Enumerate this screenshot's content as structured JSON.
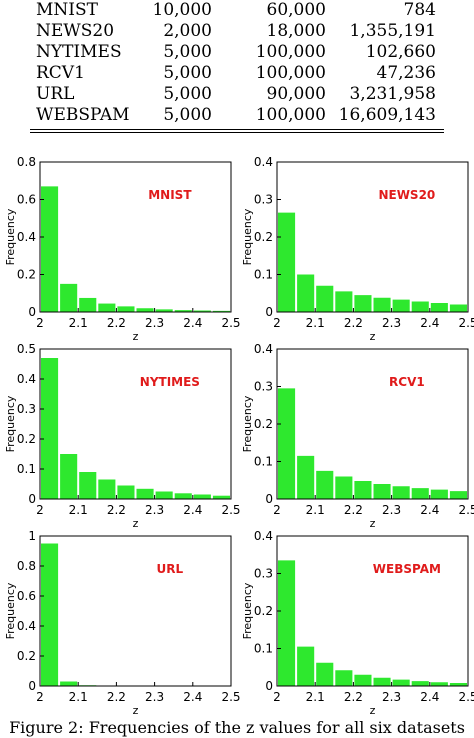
{
  "table": {
    "rows": [
      [
        "MNIST",
        "10,000",
        "60,000",
        "784"
      ],
      [
        "NEWS20",
        "2,000",
        "18,000",
        "1,355,191"
      ],
      [
        "NYTIMES",
        "5,000",
        "100,000",
        "102,660"
      ],
      [
        "RCV1",
        "5,000",
        "100,000",
        "47,236"
      ],
      [
        "URL",
        "5,000",
        "90,000",
        "3,231,958"
      ],
      [
        "WEBSPAM",
        "5,000",
        "100,000",
        "16,609,143"
      ]
    ]
  },
  "chart_data": [
    {
      "type": "bar",
      "title": "MNIST",
      "xlabel": "z",
      "ylabel": "Frequency",
      "x": [
        2.025,
        2.075,
        2.125,
        2.175,
        2.225,
        2.275,
        2.325,
        2.375,
        2.425,
        2.475
      ],
      "values": [
        0.67,
        0.15,
        0.075,
        0.045,
        0.03,
        0.02,
        0.014,
        0.01,
        0.008,
        0.006
      ],
      "xlim": [
        2,
        2.5
      ],
      "ylim": [
        0,
        0.8
      ],
      "xticks": [
        "2",
        "2.1",
        "2.2",
        "2.3",
        "2.4",
        "2.5"
      ],
      "yticks": [
        "0",
        "0.2",
        "0.4",
        "0.6",
        "0.8"
      ]
    },
    {
      "type": "bar",
      "title": "NEWS20",
      "xlabel": "z",
      "ylabel": "Frequency",
      "x": [
        2.025,
        2.075,
        2.125,
        2.175,
        2.225,
        2.275,
        2.325,
        2.375,
        2.425,
        2.475
      ],
      "values": [
        0.265,
        0.1,
        0.07,
        0.055,
        0.045,
        0.038,
        0.033,
        0.028,
        0.024,
        0.02
      ],
      "xlim": [
        2,
        2.5
      ],
      "ylim": [
        0,
        0.4
      ],
      "xticks": [
        "2",
        "2.1",
        "2.2",
        "2.3",
        "2.4",
        "2.5"
      ],
      "yticks": [
        "0",
        "0.1",
        "0.2",
        "0.3",
        "0.4"
      ]
    },
    {
      "type": "bar",
      "title": "NYTIMES",
      "xlabel": "z",
      "ylabel": "Frequency",
      "x": [
        2.025,
        2.075,
        2.125,
        2.175,
        2.225,
        2.275,
        2.325,
        2.375,
        2.425,
        2.475
      ],
      "values": [
        0.47,
        0.15,
        0.09,
        0.065,
        0.045,
        0.034,
        0.025,
        0.019,
        0.015,
        0.011
      ],
      "xlim": [
        2,
        2.5
      ],
      "ylim": [
        0,
        0.5
      ],
      "xticks": [
        "2",
        "2.1",
        "2.2",
        "2.3",
        "2.4",
        "2.5"
      ],
      "yticks": [
        "0",
        "0.1",
        "0.2",
        "0.3",
        "0.4",
        "0.5"
      ]
    },
    {
      "type": "bar",
      "title": "RCV1",
      "xlabel": "z",
      "ylabel": "Frequency",
      "x": [
        2.025,
        2.075,
        2.125,
        2.175,
        2.225,
        2.275,
        2.325,
        2.375,
        2.425,
        2.475
      ],
      "values": [
        0.295,
        0.115,
        0.075,
        0.06,
        0.048,
        0.04,
        0.034,
        0.029,
        0.025,
        0.021
      ],
      "xlim": [
        2,
        2.5
      ],
      "ylim": [
        0,
        0.4
      ],
      "xticks": [
        "2",
        "2.1",
        "2.2",
        "2.3",
        "2.4",
        "2.5"
      ],
      "yticks": [
        "0",
        "0.1",
        "0.2",
        "0.3",
        "0.4"
      ]
    },
    {
      "type": "bar",
      "title": "URL",
      "xlabel": "z",
      "ylabel": "Frequency",
      "x": [
        2.025,
        2.075,
        2.125,
        2.175,
        2.225,
        2.275,
        2.325,
        2.375,
        2.425,
        2.475
      ],
      "values": [
        0.95,
        0.03,
        0.005,
        0.003,
        0.002,
        0.001,
        0.001,
        0.001,
        0.001,
        0.001
      ],
      "xlim": [
        2,
        2.5
      ],
      "ylim": [
        0,
        1
      ],
      "xticks": [
        "2",
        "2.1",
        "2.2",
        "2.3",
        "2.4",
        "2.5"
      ],
      "yticks": [
        "0",
        "0.2",
        "0.4",
        "0.6",
        "0.8",
        "1"
      ]
    },
    {
      "type": "bar",
      "title": "WEBSPAM",
      "xlabel": "z",
      "ylabel": "Frequency",
      "x": [
        2.025,
        2.075,
        2.125,
        2.175,
        2.225,
        2.275,
        2.325,
        2.375,
        2.425,
        2.475
      ],
      "values": [
        0.335,
        0.105,
        0.062,
        0.042,
        0.03,
        0.022,
        0.017,
        0.013,
        0.01,
        0.008
      ],
      "xlim": [
        2,
        2.5
      ],
      "ylim": [
        0,
        0.4
      ],
      "xticks": [
        "2",
        "2.1",
        "2.2",
        "2.3",
        "2.4",
        "2.5"
      ],
      "yticks": [
        "0",
        "0.1",
        "0.2",
        "0.3",
        "0.4"
      ]
    }
  ],
  "colors": {
    "bar": "#2ee82e",
    "title": "#e01b1b"
  },
  "caption": "Figure 2: Frequencies of the z values for all six datasets"
}
